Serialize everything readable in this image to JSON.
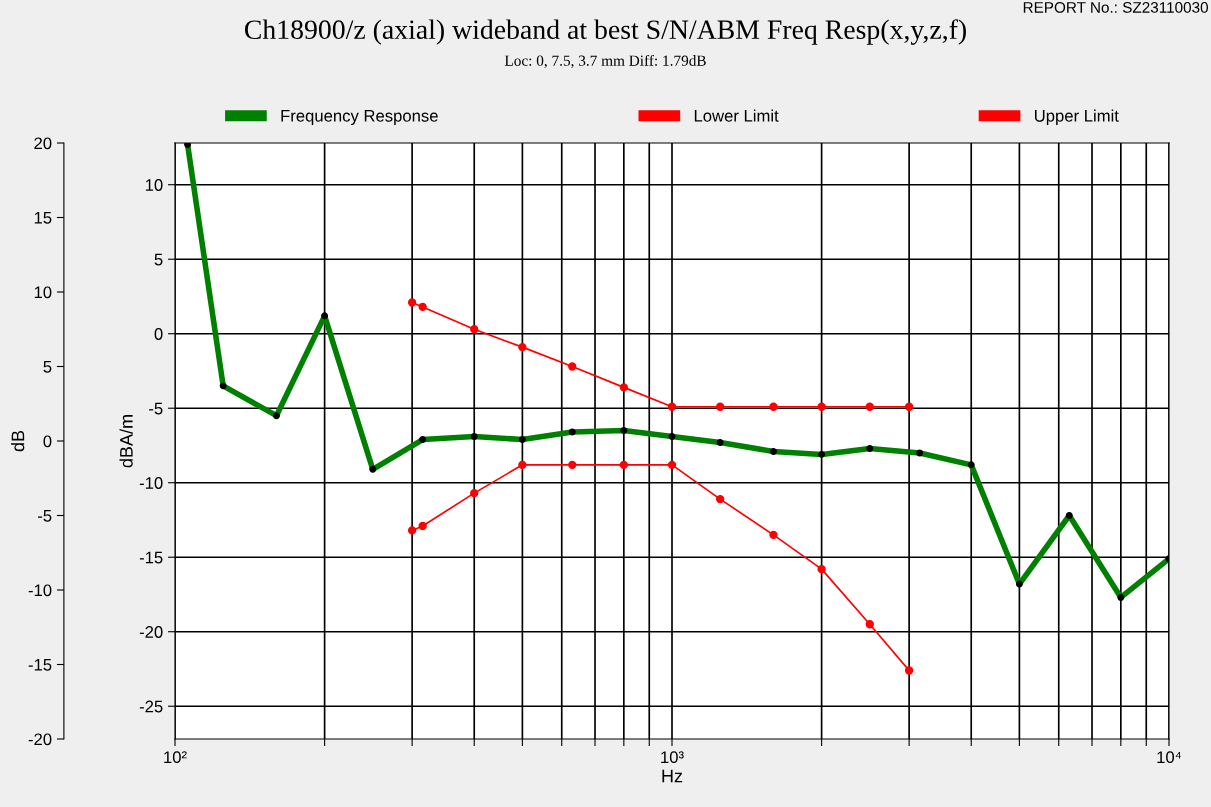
{
  "chart_data": {
    "type": "line",
    "title": "Ch18900/z (axial) wideband at best S/N/ABM Freq Resp(x,y,z,f)",
    "subtitle": "Loc: 0, 7.5, 3.7 mm Diff: 1.79dB",
    "annotations": [
      "REPORT No.: SZ23110030"
    ],
    "xlabel": "Hz",
    "ylabel": "dBA/m",
    "y2label": "dB",
    "log": "x",
    "grid": true,
    "legend": "top",
    "marker": "circle",
    "line_style": "solid",
    "xlim": [
      100,
      10000
    ],
    "xticks": [
      {
        "value": 100,
        "label": "10²"
      },
      {
        "value": 200,
        "label": null
      },
      {
        "value": 300,
        "label": null
      },
      {
        "value": 400,
        "label": null
      },
      {
        "value": 500,
        "label": null
      },
      {
        "value": 600,
        "label": null
      },
      {
        "value": 700,
        "label": null
      },
      {
        "value": 800,
        "label": null
      },
      {
        "value": 900,
        "label": null
      },
      {
        "value": 1000,
        "label": "10³"
      },
      {
        "value": 2000,
        "label": null
      },
      {
        "value": 3000,
        "label": null
      },
      {
        "value": 4000,
        "label": null
      },
      {
        "value": 5000,
        "label": null
      },
      {
        "value": 6000,
        "label": null
      },
      {
        "value": 7000,
        "label": null
      },
      {
        "value": 8000,
        "label": null
      },
      {
        "value": 9000,
        "label": null
      },
      {
        "value": 10000,
        "label": "10⁴"
      }
    ],
    "ylim": [
      -27.2,
      12.8
    ],
    "yticks": [
      10,
      5,
      0,
      -5,
      -10,
      -15,
      -20,
      -25
    ],
    "y2lim": [
      -20,
      20
    ],
    "y2ticks": [
      20,
      15,
      10,
      5,
      0,
      -5,
      -10,
      -15,
      -20
    ],
    "series": [
      {
        "name": "Frequency Response",
        "color": "#008000",
        "x": [
          106,
          125,
          160,
          200,
          250,
          315,
          400,
          500,
          630,
          800,
          1000,
          1250,
          1600,
          2000,
          2500,
          3150,
          4000,
          5000,
          6300,
          8000,
          10000
        ],
        "values": [
          12.7,
          -3.5,
          -5.5,
          1.2,
          -9.1,
          -7.1,
          -6.9,
          -7.1,
          -6.6,
          -6.5,
          -6.9,
          -7.3,
          -7.9,
          -8.1,
          -7.7,
          -8.0,
          -8.8,
          -16.8,
          -12.2,
          -17.7,
          -15.1
        ]
      },
      {
        "name": "Lower Limit",
        "color": "#ff0000",
        "x": [
          300,
          315,
          400,
          500,
          630,
          800,
          1000,
          1250,
          1600,
          2000,
          2500,
          3000
        ],
        "values": [
          -13.2,
          -12.9,
          -10.7,
          -8.8,
          -8.8,
          -8.8,
          -8.8,
          -11.1,
          -13.5,
          -15.8,
          -19.5,
          -22.6
        ]
      },
      {
        "name": "Upper Limit",
        "color": "#ff0000",
        "x": [
          300,
          315,
          400,
          500,
          630,
          800,
          1000,
          1250,
          1600,
          2000,
          2500,
          3000
        ],
        "values": [
          2.1,
          1.8,
          0.3,
          -0.9,
          -2.2,
          -3.6,
          -4.9,
          -4.9,
          -4.9,
          -4.9,
          -4.9,
          -4.9
        ]
      }
    ]
  }
}
